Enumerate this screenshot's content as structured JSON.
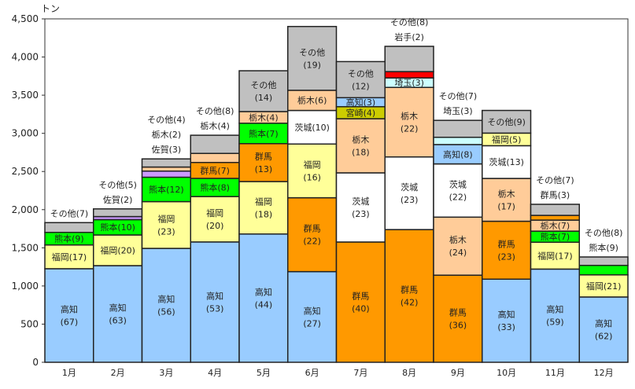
{
  "chart_data": {
    "type": "bar",
    "stacked": true,
    "ylabel": "トン",
    "ylim": [
      0,
      4500
    ],
    "yticks": [
      "0",
      "500",
      "1,000",
      "1,500",
      "2,000",
      "2,500",
      "3,000",
      "3,500",
      "4,000",
      "4,500"
    ],
    "ytick_values": [
      0,
      500,
      1000,
      1500,
      2000,
      2500,
      3000,
      3500,
      4000,
      4500
    ],
    "grid": false,
    "categories": [
      "1月",
      "2月",
      "3月",
      "4月",
      "5月",
      "6月",
      "7月",
      "8月",
      "9月",
      "10月",
      "11月",
      "12月"
    ],
    "colors": {
      "高知": "#99ccff",
      "福岡": "#ffff99",
      "熊本": "#00ff00",
      "群馬": "#ff9900",
      "栃木": "#ffcc99",
      "茨城": "#ffffff",
      "佐賀": "#cc99ff",
      "宮崎": "#cccc00",
      "埼玉": "#ccffff",
      "岩手": "#ff0000",
      "その他": "#c0c0c0"
    },
    "bars": [
      {
        "total": 1830,
        "segments": [
          {
            "name": "高知",
            "pct": 67
          },
          {
            "name": "福岡",
            "pct": 17
          },
          {
            "name": "熊本",
            "pct": 9
          },
          {
            "name": "その他",
            "pct": 7,
            "outside": true
          }
        ]
      },
      {
        "total": 2010,
        "segments": [
          {
            "name": "高知",
            "pct": 63
          },
          {
            "name": "福岡",
            "pct": 20
          },
          {
            "name": "熊本",
            "pct": 10
          },
          {
            "name": "佐賀",
            "pct": 2,
            "outside": true
          },
          {
            "name": "その他",
            "pct": 5,
            "outside": true
          }
        ]
      },
      {
        "total": 2665,
        "segments": [
          {
            "name": "高知",
            "pct": 56
          },
          {
            "name": "福岡",
            "pct": 23
          },
          {
            "name": "熊本",
            "pct": 12
          },
          {
            "name": "佐賀",
            "pct": 3,
            "outside": true
          },
          {
            "name": "栃木",
            "pct": 2,
            "outside": true
          },
          {
            "name": "その他",
            "pct": 4,
            "outside": true
          }
        ]
      },
      {
        "total": 2975,
        "segments": [
          {
            "name": "高知",
            "pct": 53
          },
          {
            "name": "福岡",
            "pct": 20
          },
          {
            "name": "熊本",
            "pct": 8
          },
          {
            "name": "群馬",
            "pct": 7
          },
          {
            "name": "栃木",
            "pct": 4,
            "outside": true
          },
          {
            "name": "その他",
            "pct": 8,
            "outside": true
          }
        ]
      },
      {
        "total": 3820,
        "segments": [
          {
            "name": "高知",
            "pct": 44
          },
          {
            "name": "福岡",
            "pct": 18
          },
          {
            "name": "群馬",
            "pct": 13
          },
          {
            "name": "熊本",
            "pct": 7
          },
          {
            "name": "栃木",
            "pct": 4
          },
          {
            "name": "その他",
            "pct": 14
          }
        ]
      },
      {
        "total": 4400,
        "segments": [
          {
            "name": "高知",
            "pct": 27
          },
          {
            "name": "群馬",
            "pct": 22
          },
          {
            "name": "福岡",
            "pct": 16
          },
          {
            "name": "茨城",
            "pct": 10
          },
          {
            "name": "栃木",
            "pct": 6
          },
          {
            "name": "その他",
            "pct": 19
          }
        ]
      },
      {
        "total": 3940,
        "segments": [
          {
            "name": "群馬",
            "pct": 40
          },
          {
            "name": "茨城",
            "pct": 23
          },
          {
            "name": "栃木",
            "pct": 18
          },
          {
            "name": "宮崎",
            "pct": 4
          },
          {
            "name": "高知",
            "pct": 3
          },
          {
            "name": "その他",
            "pct": 12
          }
        ]
      },
      {
        "total": 4140,
        "segments": [
          {
            "name": "群馬",
            "pct": 42
          },
          {
            "name": "茨城",
            "pct": 23
          },
          {
            "name": "栃木",
            "pct": 22
          },
          {
            "name": "埼玉",
            "pct": 3
          },
          {
            "name": "岩手",
            "pct": 2,
            "outside": true
          },
          {
            "name": "その他",
            "pct": 8,
            "outside": true
          }
        ]
      },
      {
        "total": 3170,
        "segments": [
          {
            "name": "群馬",
            "pct": 36
          },
          {
            "name": "栃木",
            "pct": 24
          },
          {
            "name": "茨城",
            "pct": 22
          },
          {
            "name": "高知",
            "pct": 8
          },
          {
            "name": "埼玉",
            "pct": 3,
            "outside": true
          },
          {
            "name": "その他",
            "pct": 7,
            "outside": true
          }
        ]
      },
      {
        "total": 3300,
        "segments": [
          {
            "name": "高知",
            "pct": 33
          },
          {
            "name": "群馬",
            "pct": 23
          },
          {
            "name": "栃木",
            "pct": 17
          },
          {
            "name": "茨城",
            "pct": 13
          },
          {
            "name": "福岡",
            "pct": 5
          },
          {
            "name": "その他",
            "pct": 9
          }
        ]
      },
      {
        "total": 2070,
        "segments": [
          {
            "name": "高知",
            "pct": 59
          },
          {
            "name": "福岡",
            "pct": 17
          },
          {
            "name": "熊本",
            "pct": 7
          },
          {
            "name": "栃木",
            "pct": 7
          },
          {
            "name": "群馬",
            "pct": 3,
            "outside": true
          },
          {
            "name": "その他",
            "pct": 7,
            "outside": true
          }
        ]
      },
      {
        "total": 1380,
        "segments": [
          {
            "name": "高知",
            "pct": 62
          },
          {
            "name": "福岡",
            "pct": 21
          },
          {
            "name": "熊本",
            "pct": 9,
            "outside": true
          },
          {
            "name": "その他",
            "pct": 8,
            "outside": true
          }
        ]
      }
    ]
  }
}
